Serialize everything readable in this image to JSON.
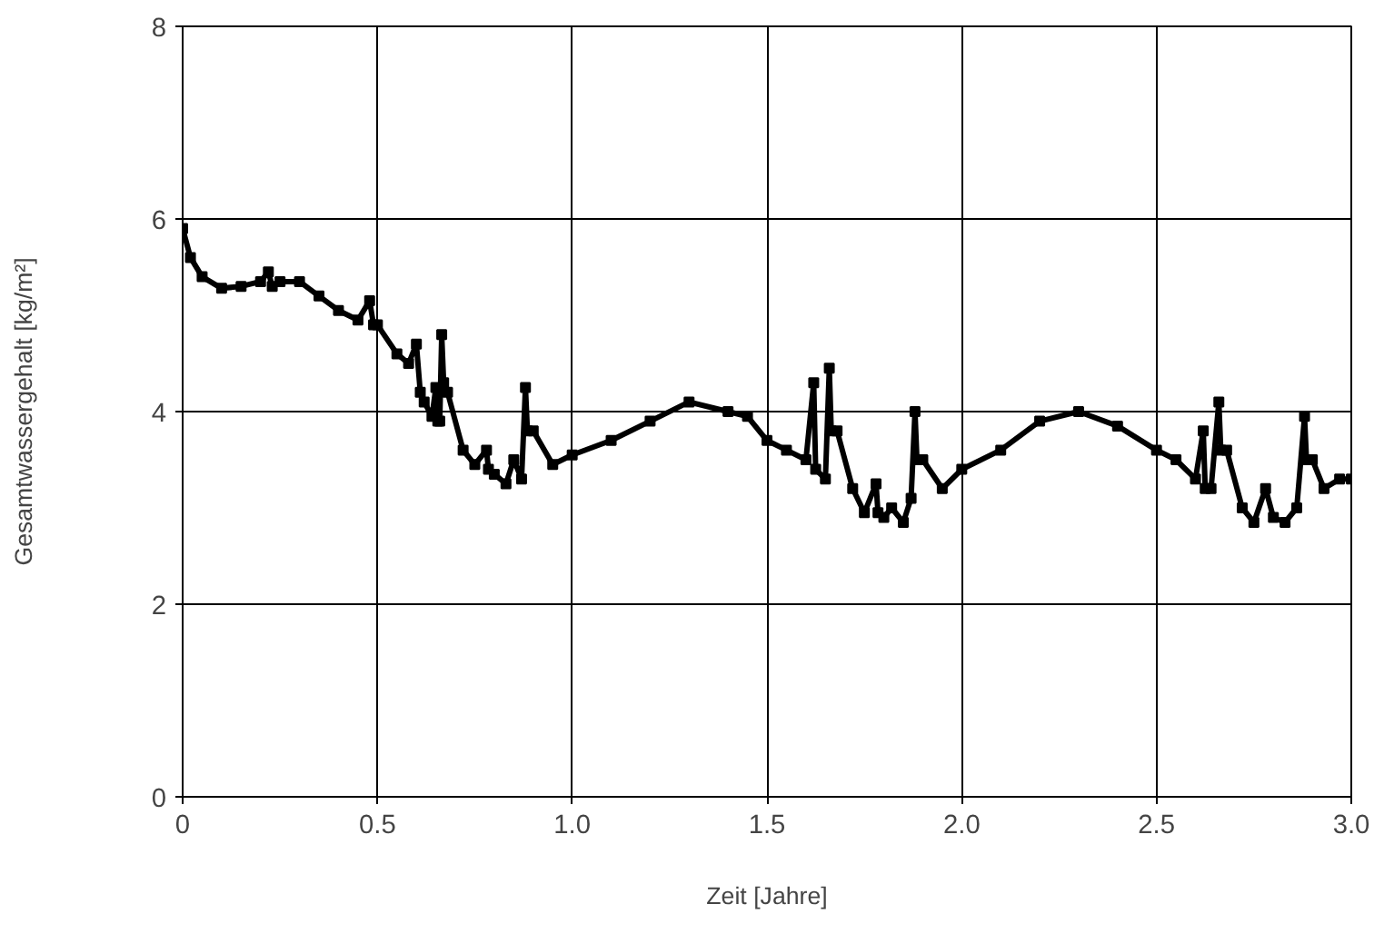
{
  "chart_data": {
    "type": "line",
    "xlabel": "Zeit [Jahre]",
    "ylabel": "Gesamtwassergehalt [kg/m²]",
    "xlim": [
      0,
      3
    ],
    "ylim": [
      0,
      8
    ],
    "xticks": [
      0,
      0.5,
      {
        "value": 1,
        "label": "1.0"
      },
      1.5,
      {
        "value": 2,
        "label": "2.0"
      },
      2.5,
      {
        "value": 3,
        "label": "3.0"
      }
    ],
    "yticks": [
      0,
      2,
      4,
      6,
      8
    ],
    "grid": true,
    "marker": "square",
    "line_style": "solid",
    "series": [
      {
        "color": "#000000",
        "x": [
          0,
          0.02,
          0.05,
          0.1,
          0.15,
          0.2,
          0.22,
          0.23,
          0.25,
          0.3,
          0.35,
          0.4,
          0.45,
          0.48,
          0.49,
          0.5,
          0.55,
          0.58,
          0.6,
          0.61,
          0.62,
          0.64,
          0.65,
          0.655,
          0.66,
          0.665,
          0.67,
          0.68,
          0.72,
          0.75,
          0.78,
          0.785,
          0.8,
          0.83,
          0.85,
          0.87,
          0.88,
          0.885,
          0.9,
          0.95,
          1.0,
          1.1,
          1.2,
          1.3,
          1.4,
          1.45,
          1.5,
          1.55,
          1.6,
          1.62,
          1.625,
          1.65,
          1.66,
          1.665,
          1.68,
          1.72,
          1.75,
          1.78,
          1.785,
          1.8,
          1.82,
          1.85,
          1.87,
          1.88,
          1.885,
          1.9,
          1.95,
          2.0,
          2.1,
          2.2,
          2.3,
          2.4,
          2.5,
          2.55,
          2.6,
          2.62,
          2.625,
          2.64,
          2.66,
          2.665,
          2.68,
          2.72,
          2.75,
          2.78,
          2.8,
          2.83,
          2.86,
          2.88,
          2.885,
          2.9,
          2.93,
          2.97,
          3.0
        ],
        "values": [
          5.9,
          5.6,
          5.4,
          5.28,
          5.3,
          5.35,
          5.45,
          5.3,
          5.35,
          5.35,
          5.2,
          5.05,
          4.95,
          5.15,
          4.9,
          4.9,
          4.6,
          4.5,
          4.7,
          4.2,
          4.1,
          3.95,
          4.25,
          3.9,
          3.9,
          4.8,
          4.3,
          4.2,
          3.6,
          3.45,
          3.6,
          3.4,
          3.35,
          3.25,
          3.5,
          3.3,
          4.25,
          3.8,
          3.8,
          3.45,
          3.55,
          3.7,
          3.9,
          4.1,
          4.0,
          3.95,
          3.7,
          3.6,
          3.5,
          4.3,
          3.4,
          3.3,
          4.45,
          3.8,
          3.8,
          3.2,
          2.95,
          3.25,
          2.95,
          2.9,
          3.0,
          2.85,
          3.1,
          4.0,
          3.5,
          3.5,
          3.2,
          3.4,
          3.6,
          3.9,
          4.0,
          3.85,
          3.6,
          3.5,
          3.3,
          3.8,
          3.2,
          3.2,
          4.1,
          3.6,
          3.6,
          3.0,
          2.85,
          3.2,
          2.9,
          2.85,
          3.0,
          3.95,
          3.5,
          3.5,
          3.2,
          3.3,
          3.3
        ]
      }
    ]
  }
}
